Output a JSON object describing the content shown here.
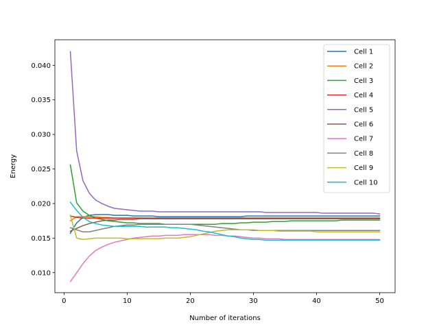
{
  "chart_data": {
    "type": "line",
    "title": "",
    "xlabel": "Number of iterations",
    "ylabel": "Energy",
    "xlim": [
      -1.45,
      52.45
    ],
    "ylim": [
      0.0071,
      0.0437
    ],
    "xticks": [
      0,
      10,
      20,
      30,
      40,
      50
    ],
    "xtick_labels": [
      "0",
      "10",
      "20",
      "30",
      "40",
      "50"
    ],
    "yticks": [
      0.01,
      0.015,
      0.02,
      0.025,
      0.03,
      0.035,
      0.04
    ],
    "ytick_labels": [
      "0.010",
      "0.015",
      "0.020",
      "0.025",
      "0.030",
      "0.035",
      "0.040"
    ],
    "grid": false,
    "legend_position": "top-right",
    "x": [
      1,
      2,
      3,
      4,
      5,
      6,
      7,
      8,
      9,
      10,
      11,
      12,
      13,
      14,
      15,
      16,
      17,
      18,
      19,
      20,
      21,
      22,
      23,
      24,
      25,
      26,
      27,
      28,
      29,
      30,
      31,
      32,
      33,
      34,
      35,
      36,
      37,
      38,
      39,
      40,
      41,
      42,
      43,
      44,
      45,
      46,
      47,
      48,
      49,
      50
    ],
    "series": [
      {
        "name": "Cell 1",
        "color": "#1f77b4",
        "values": [
          0.0157,
          0.0172,
          0.018,
          0.0183,
          0.0184,
          0.0184,
          0.0184,
          0.0183,
          0.0183,
          0.0183,
          0.0182,
          0.0182,
          0.0182,
          0.0182,
          0.0181,
          0.0181,
          0.0181,
          0.0181,
          0.0181,
          0.0181,
          0.0181,
          0.0181,
          0.0181,
          0.0181,
          0.0181,
          0.0181,
          0.0181,
          0.0181,
          0.0182,
          0.0182,
          0.0182,
          0.0182,
          0.0182,
          0.0182,
          0.0182,
          0.0182,
          0.0182,
          0.0182,
          0.0182,
          0.0182,
          0.0182,
          0.0182,
          0.0182,
          0.0182,
          0.0182,
          0.0182,
          0.0182,
          0.0182,
          0.0182,
          0.0182
        ]
      },
      {
        "name": "Cell 2",
        "color": "#ff7f0e",
        "values": [
          0.0175,
          0.0181,
          0.0181,
          0.0181,
          0.0181,
          0.018,
          0.018,
          0.0179,
          0.0179,
          0.0179,
          0.0179,
          0.0179,
          0.0179,
          0.0178,
          0.0178,
          0.0178,
          0.0178,
          0.0178,
          0.0178,
          0.0178,
          0.0178,
          0.0178,
          0.0178,
          0.0178,
          0.0178,
          0.0178,
          0.0178,
          0.0178,
          0.0178,
          0.0178,
          0.0178,
          0.0178,
          0.0178,
          0.0178,
          0.0178,
          0.0178,
          0.0178,
          0.0178,
          0.0178,
          0.0178,
          0.0178,
          0.0178,
          0.0178,
          0.0178,
          0.0178,
          0.0178,
          0.0178,
          0.0178,
          0.0178,
          0.0178
        ]
      },
      {
        "name": "Cell 3",
        "color": "#2ca02c",
        "values": [
          0.0256,
          0.0201,
          0.0189,
          0.0183,
          0.0179,
          0.0177,
          0.0175,
          0.0174,
          0.0173,
          0.0172,
          0.0172,
          0.0171,
          0.0171,
          0.0171,
          0.0171,
          0.017,
          0.017,
          0.017,
          0.017,
          0.017,
          0.017,
          0.017,
          0.017,
          0.017,
          0.0171,
          0.0171,
          0.0171,
          0.0172,
          0.0172,
          0.0173,
          0.0173,
          0.0173,
          0.0174,
          0.0174,
          0.0174,
          0.0175,
          0.0175,
          0.0175,
          0.0175,
          0.0175,
          0.0175,
          0.0175,
          0.0175,
          0.0176,
          0.0176,
          0.0176,
          0.0176,
          0.0176,
          0.0176,
          0.0176
        ]
      },
      {
        "name": "Cell 4",
        "color": "#d62728",
        "values": [
          0.0182,
          0.018,
          0.0179,
          0.0179,
          0.0179,
          0.0179,
          0.0179,
          0.0179,
          0.0179,
          0.0179,
          0.0179,
          0.0179,
          0.0179,
          0.0179,
          0.0179,
          0.0179,
          0.0179,
          0.0179,
          0.0179,
          0.0179,
          0.0179,
          0.0179,
          0.0179,
          0.0179,
          0.0179,
          0.0179,
          0.0179,
          0.0179,
          0.0179,
          0.0179,
          0.0179,
          0.0179,
          0.0179,
          0.0179,
          0.0179,
          0.0179,
          0.0179,
          0.0179,
          0.0179,
          0.0179,
          0.0179,
          0.0179,
          0.0179,
          0.0179,
          0.0179,
          0.0179,
          0.0179,
          0.0179,
          0.0179,
          0.0179
        ]
      },
      {
        "name": "Cell 5",
        "color": "#9467bd",
        "values": [
          0.042,
          0.0276,
          0.0233,
          0.0215,
          0.0205,
          0.02,
          0.0196,
          0.0193,
          0.0192,
          0.0191,
          0.019,
          0.0189,
          0.0189,
          0.0189,
          0.0188,
          0.0188,
          0.0188,
          0.0188,
          0.0188,
          0.0188,
          0.0188,
          0.0188,
          0.0188,
          0.0188,
          0.0188,
          0.0188,
          0.0188,
          0.0188,
          0.0188,
          0.0188,
          0.0188,
          0.0187,
          0.0187,
          0.0187,
          0.0187,
          0.0187,
          0.0187,
          0.0187,
          0.0187,
          0.0187,
          0.0186,
          0.0186,
          0.0186,
          0.0186,
          0.0186,
          0.0186,
          0.0186,
          0.0186,
          0.0186,
          0.0185
        ]
      },
      {
        "name": "Cell 6",
        "color": "#8c564b",
        "values": [
          0.016,
          0.0164,
          0.0168,
          0.0171,
          0.0173,
          0.0175,
          0.0176,
          0.0176,
          0.0177,
          0.0177,
          0.0177,
          0.0178,
          0.0178,
          0.0178,
          0.0178,
          0.0178,
          0.0178,
          0.0178,
          0.0178,
          0.0178,
          0.0178,
          0.0178,
          0.0178,
          0.0178,
          0.0178,
          0.0178,
          0.0178,
          0.0178,
          0.0178,
          0.0178,
          0.0178,
          0.0178,
          0.0178,
          0.0178,
          0.0178,
          0.0178,
          0.0178,
          0.0178,
          0.0178,
          0.0178,
          0.0178,
          0.0178,
          0.0178,
          0.0178,
          0.0178,
          0.0178,
          0.0178,
          0.0178,
          0.0178,
          0.0178
        ]
      },
      {
        "name": "Cell 7",
        "color": "#e377c2",
        "values": [
          0.0087,
          0.01,
          0.0113,
          0.0124,
          0.0132,
          0.0137,
          0.0141,
          0.0144,
          0.0146,
          0.0148,
          0.015,
          0.0151,
          0.0152,
          0.0153,
          0.0153,
          0.0154,
          0.0154,
          0.0154,
          0.0155,
          0.0155,
          0.0155,
          0.0155,
          0.0155,
          0.0154,
          0.0154,
          0.0153,
          0.0153,
          0.0152,
          0.0151,
          0.015,
          0.015,
          0.0149,
          0.0149,
          0.0149,
          0.0148,
          0.0148,
          0.0148,
          0.0148,
          0.0148,
          0.0148,
          0.0148,
          0.0148,
          0.0148,
          0.0148,
          0.0148,
          0.0148,
          0.0148,
          0.0148,
          0.0148,
          0.0148
        ]
      },
      {
        "name": "Cell 8",
        "color": "#7f7f7f",
        "values": [
          0.0165,
          0.0162,
          0.0159,
          0.0159,
          0.0161,
          0.0163,
          0.0165,
          0.0167,
          0.0168,
          0.0169,
          0.0169,
          0.017,
          0.017,
          0.017,
          0.017,
          0.017,
          0.017,
          0.017,
          0.017,
          0.017,
          0.0169,
          0.0168,
          0.0167,
          0.0166,
          0.0165,
          0.0164,
          0.0163,
          0.0162,
          0.0162,
          0.0161,
          0.0161,
          0.0161,
          0.0161,
          0.0161,
          0.0161,
          0.0161,
          0.0161,
          0.0161,
          0.0161,
          0.0161,
          0.0161,
          0.0161,
          0.0161,
          0.0161,
          0.0161,
          0.0161,
          0.0161,
          0.0161,
          0.0161,
          0.0161
        ]
      },
      {
        "name": "Cell 9",
        "color": "#bcbd22",
        "values": [
          0.0183,
          0.015,
          0.0148,
          0.0149,
          0.015,
          0.015,
          0.015,
          0.015,
          0.015,
          0.0149,
          0.0149,
          0.0149,
          0.0149,
          0.0149,
          0.0149,
          0.015,
          0.015,
          0.015,
          0.0151,
          0.0152,
          0.0154,
          0.0156,
          0.0158,
          0.016,
          0.0161,
          0.0162,
          0.0162,
          0.0162,
          0.0162,
          0.0162,
          0.0161,
          0.0161,
          0.0161,
          0.016,
          0.016,
          0.016,
          0.016,
          0.016,
          0.016,
          0.0159,
          0.0159,
          0.0159,
          0.0159,
          0.0159,
          0.0159,
          0.0159,
          0.0159,
          0.0159,
          0.0159,
          0.0159
        ]
      },
      {
        "name": "Cell 10",
        "color": "#17becf",
        "values": [
          0.0202,
          0.019,
          0.018,
          0.0174,
          0.0171,
          0.0169,
          0.0168,
          0.0167,
          0.0167,
          0.0167,
          0.0167,
          0.0167,
          0.0166,
          0.0166,
          0.0166,
          0.0166,
          0.0165,
          0.0165,
          0.0164,
          0.0163,
          0.0162,
          0.016,
          0.0159,
          0.0157,
          0.0155,
          0.0153,
          0.0152,
          0.015,
          0.0149,
          0.0148,
          0.0148,
          0.0147,
          0.0147,
          0.0147,
          0.0147,
          0.0147,
          0.0147,
          0.0147,
          0.0147,
          0.0147,
          0.0147,
          0.0147,
          0.0147,
          0.0147,
          0.0147,
          0.0147,
          0.0147,
          0.0147,
          0.0147,
          0.0147
        ]
      }
    ]
  }
}
